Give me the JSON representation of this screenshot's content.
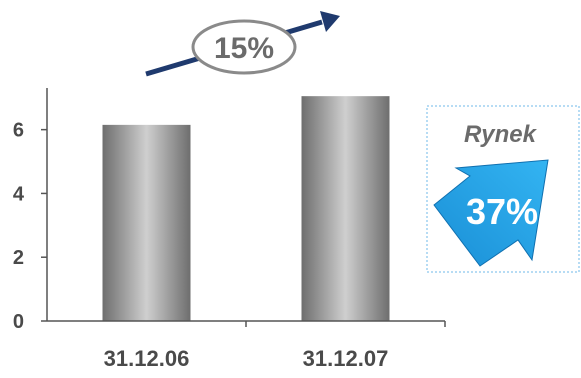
{
  "chart_data": {
    "type": "bar",
    "categories": [
      "31.12.06",
      "31.12.07"
    ],
    "values": [
      6.15,
      7.05
    ],
    "title": "",
    "xlabel": "",
    "ylabel": "",
    "ylim": [
      0,
      7.4
    ],
    "yticks": [
      0,
      2,
      4,
      6
    ],
    "grid": false,
    "bar_color": "#999999",
    "annotations": {
      "growth_label": "15%",
      "growth_arrow_color": "#1f3a6e",
      "market_label": "Rynek",
      "market_share_label": "37%",
      "market_arrow_color": "#1aa0e6"
    }
  }
}
